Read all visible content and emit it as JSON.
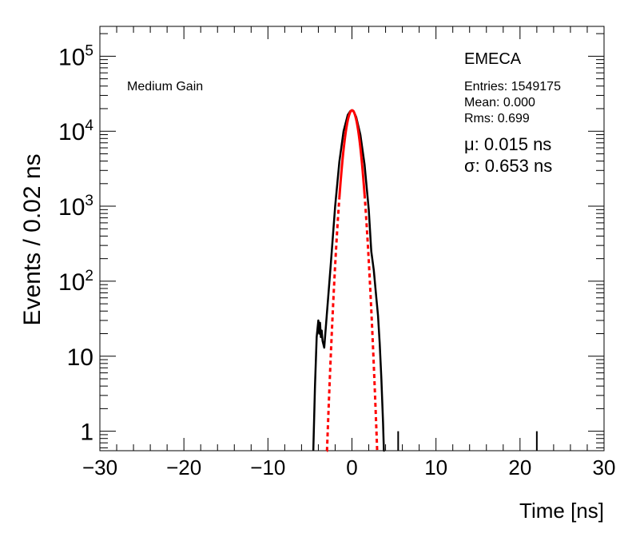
{
  "chart_data": {
    "type": "line",
    "xlabel": "Time [ns]",
    "ylabel": "Events / 0.02 ns",
    "xlim": [
      -30,
      30
    ],
    "ylim": [
      0.55,
      250000
    ],
    "yscale": "log",
    "grid": false,
    "x_ticks": [
      "−30",
      "−20",
      "−10",
      "0",
      "10",
      "20",
      "30"
    ],
    "x_tick_values": [
      -30,
      -20,
      -10,
      0,
      10,
      20,
      30
    ],
    "y_ticks": [
      {
        "value": 1,
        "base": "1",
        "exp": ""
      },
      {
        "value": 10,
        "base": "10",
        "exp": ""
      },
      {
        "value": 100,
        "base": "10",
        "exp": "2"
      },
      {
        "value": 1000,
        "base": "10",
        "exp": "3"
      },
      {
        "value": 10000,
        "base": "10",
        "exp": "4"
      },
      {
        "value": 100000,
        "base": "10",
        "exp": "5"
      }
    ],
    "annotations": {
      "gain_label": "Medium Gain",
      "detector": "EMECA",
      "entries": "Entries: 1549175",
      "mean": "Mean: 0.000",
      "rms": "Rms: 0.699",
      "fit_mu": "μ: 0.015 ns",
      "fit_sigma": "σ: 0.653 ns"
    },
    "series": [
      {
        "color": "#000000",
        "style": "solid",
        "x": [
          -4.6,
          -4.4,
          -4.2,
          -4.0,
          -3.9,
          -3.8,
          -3.7,
          -3.6,
          -3.5,
          -3.3,
          -3.0,
          -2.5,
          -2.0,
          -1.5,
          -1.0,
          -0.5,
          -0.2,
          0.0,
          0.2,
          0.5,
          1.0,
          1.5,
          2.0,
          2.3,
          2.6,
          2.9,
          3.1,
          3.3,
          3.5,
          3.7,
          3.8,
          3.9
        ],
        "y": [
          0.55,
          4,
          18,
          30,
          20,
          28,
          18,
          22,
          16,
          13,
          35,
          180,
          1000,
          3900,
          10000,
          16500,
          18500,
          19000,
          18500,
          15500,
          9000,
          3600,
          900,
          250,
          140,
          60,
          35,
          15,
          5,
          1.3,
          0.55,
          0.55
        ]
      },
      {
        "color": "#ff0000",
        "style": "fit-gaussian",
        "mu": 0.015,
        "sigma": 0.653,
        "amplitude": 19000,
        "solid_range": [
          -1.5,
          1.5
        ],
        "range": [
          -3.0,
          3.0
        ]
      },
      {
        "color": "#000000",
        "style": "spikes",
        "x": [
          5.5,
          22.0
        ],
        "y": [
          1,
          1
        ]
      }
    ]
  }
}
